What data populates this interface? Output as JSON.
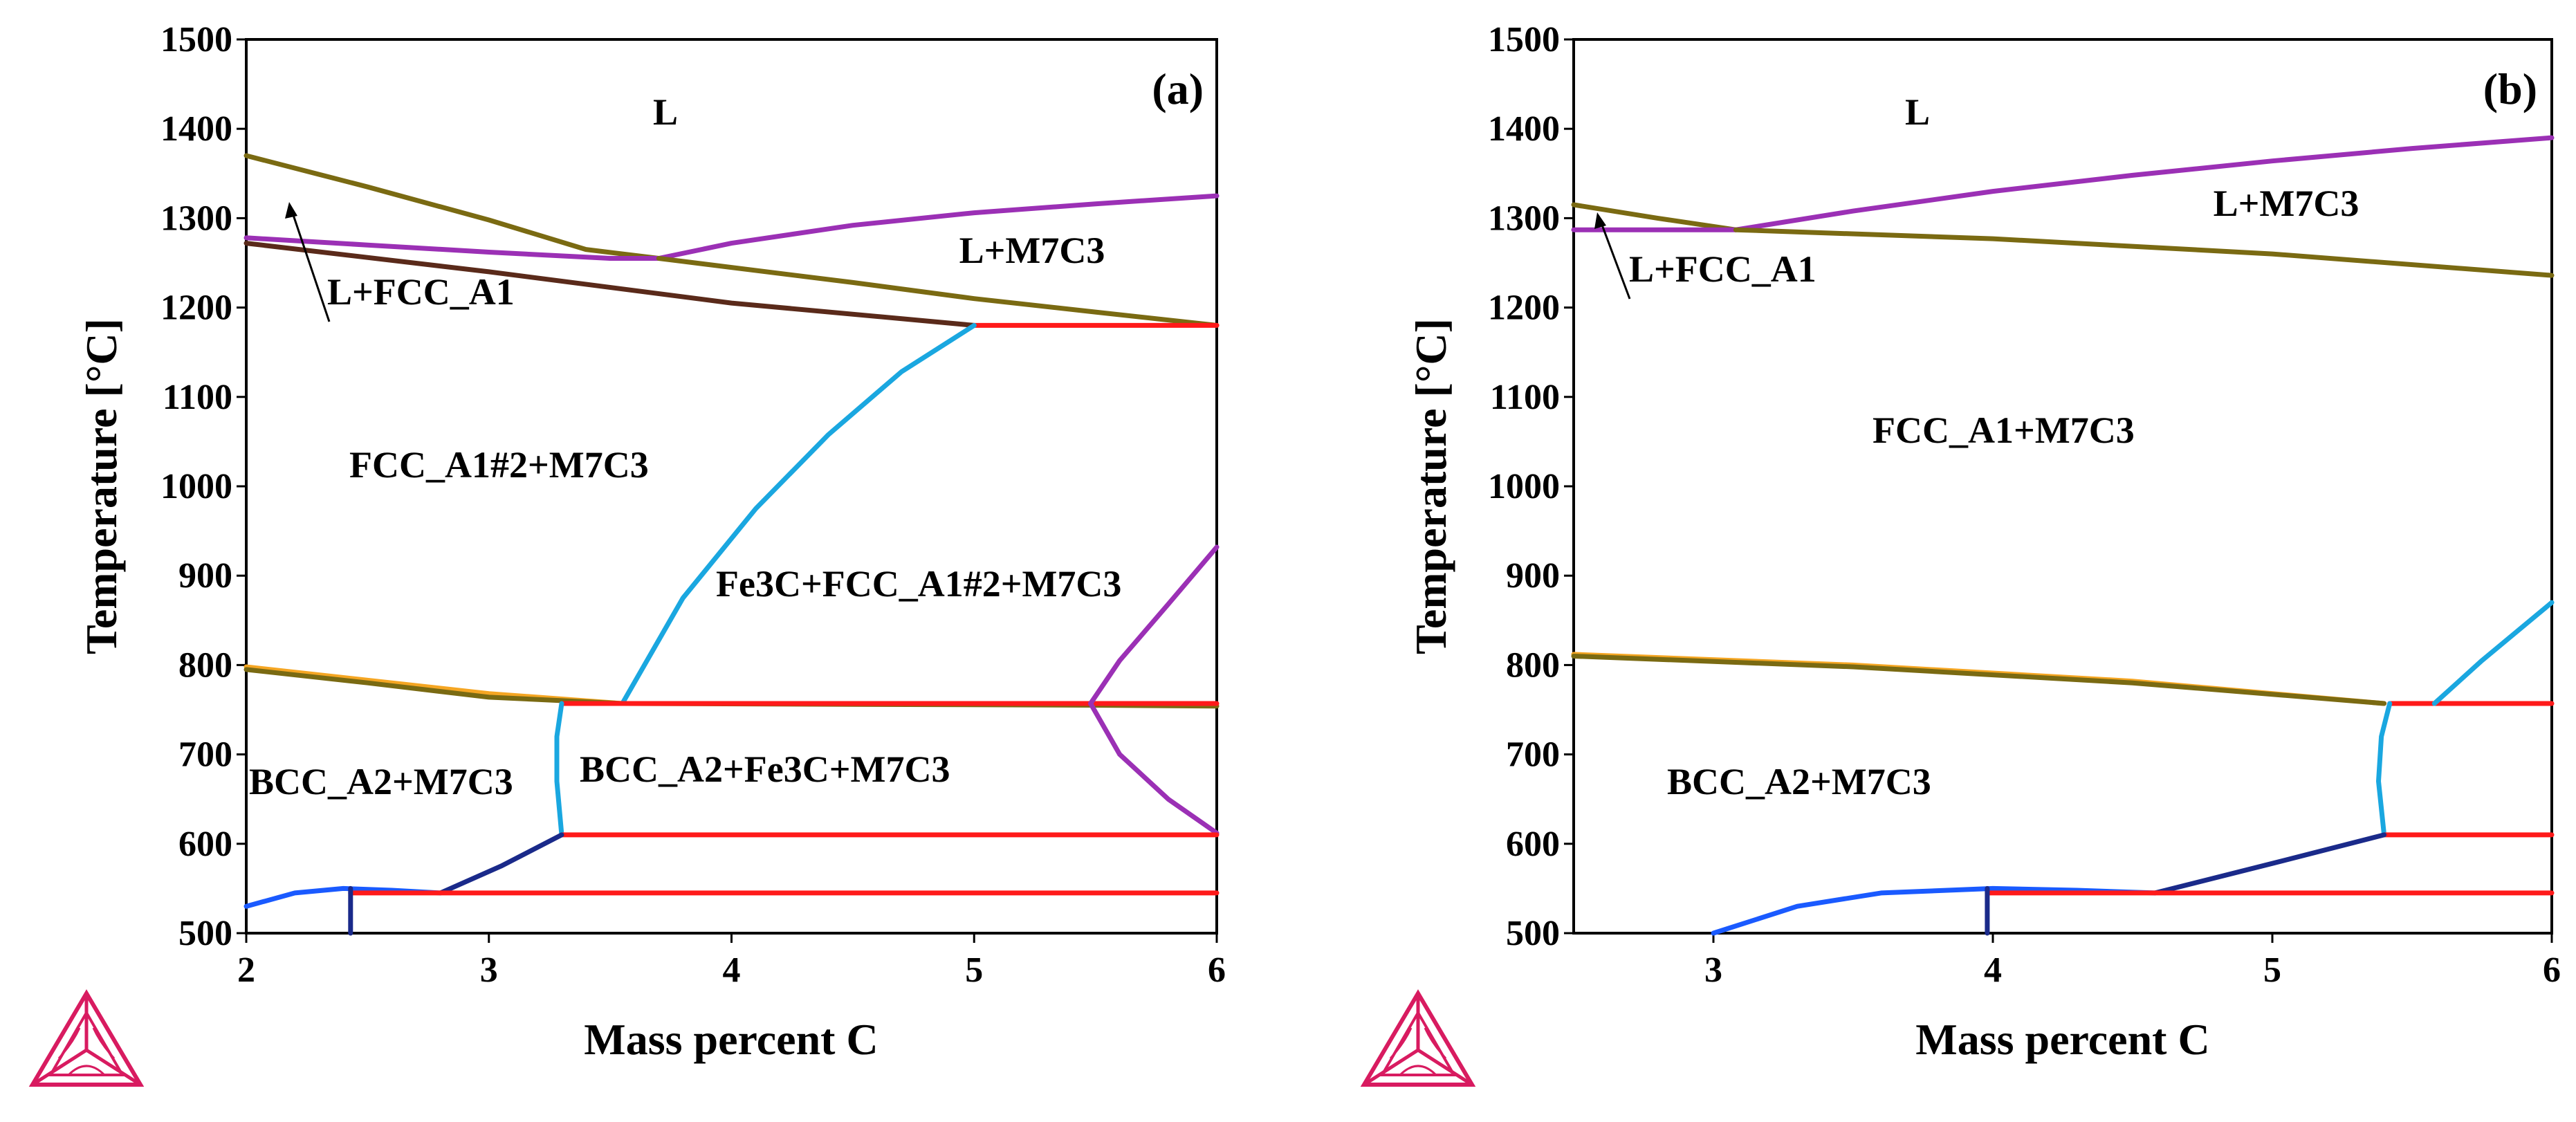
{
  "chart_data": [
    {
      "type": "line",
      "panel_label": "(a)",
      "xlabel": "Mass percent C",
      "ylabel": "Temperature [°C]",
      "xlim": [
        2,
        6
      ],
      "ylim": [
        500,
        1500
      ],
      "x_ticks": [
        2,
        3,
        4,
        5,
        6
      ],
      "y_ticks": [
        500,
        600,
        700,
        800,
        900,
        1000,
        1100,
        1200,
        1300,
        1400,
        1500
      ],
      "series": [
        {
          "name": "liquidus FCC_A1",
          "color": "#7a6a12",
          "points": [
            [
              2,
              1370
            ],
            [
              2.5,
              1335
            ],
            [
              3,
              1298
            ],
            [
              3.4,
              1265
            ],
            [
              3.7,
              1255
            ]
          ]
        },
        {
          "name": "liquidus M7C3",
          "color": "#9b30b5",
          "points": [
            [
              3.7,
              1255
            ],
            [
              4,
              1272
            ],
            [
              4.5,
              1292
            ],
            [
              5,
              1306
            ],
            [
              5.5,
              1316
            ],
            [
              6,
              1325
            ]
          ]
        },
        {
          "name": "solidus FCC_A1",
          "color": "#9b30b5",
          "points": [
            [
              2,
              1278
            ],
            [
              2.5,
              1270
            ],
            [
              3,
              1262
            ],
            [
              3.5,
              1255
            ],
            [
              3.7,
              1255
            ]
          ]
        },
        {
          "name": "L+M7C3 lower boundary",
          "color": "#7a6a12",
          "points": [
            [
              3.7,
              1255
            ],
            [
              4.5,
              1228
            ],
            [
              5,
              1210
            ],
            [
              5.5,
              1195
            ],
            [
              6,
              1180
            ]
          ]
        },
        {
          "name": "FCC solidus boundary",
          "color": "#5a2a1a",
          "points": [
            [
              2,
              1272
            ],
            [
              3,
              1240
            ],
            [
              4,
              1205
            ],
            [
              5,
              1180
            ]
          ]
        },
        {
          "name": "eutectic line",
          "color": "#ff1a1a",
          "points": [
            [
              5,
              1180
            ],
            [
              6,
              1180
            ]
          ]
        },
        {
          "name": "Fe3C solvus",
          "color": "#1aa7e0",
          "points": [
            [
              3.55,
              757
            ],
            [
              3.8,
              875
            ],
            [
              4.1,
              975
            ],
            [
              4.4,
              1058
            ],
            [
              4.7,
              1128
            ],
            [
              5,
              1180
            ]
          ]
        },
        {
          "name": "eutectoid boundary (orange)",
          "color": "#f5a623",
          "points": [
            [
              2,
              798
            ],
            [
              2.5,
              783
            ],
            [
              3,
              768
            ],
            [
              3.55,
              757
            ]
          ]
        },
        {
          "name": "eutectoid boundary (olive)",
          "color": "#7a6a12",
          "points": [
            [
              2,
              795
            ],
            [
              2.5,
              780
            ],
            [
              3,
              764
            ],
            [
              3.55,
              757
            ],
            [
              4.5,
              756
            ],
            [
              5.5,
              755
            ],
            [
              6,
              754
            ]
          ]
        },
        {
          "name": "eutectoid horizontal",
          "color": "#ff1a1a",
          "points": [
            [
              3.3,
              757
            ],
            [
              6,
              757
            ]
          ]
        },
        {
          "name": "BCC boundary",
          "color": "#1aa7e0",
          "points": [
            [
              3.3,
              757
            ],
            [
              3.28,
              720
            ],
            [
              3.28,
              670
            ],
            [
              3.3,
              610
            ]
          ]
        },
        {
          "name": "M7C3 upper solvus",
          "color": "#9b30b5",
          "points": [
            [
              5.48,
              757
            ],
            [
              5.6,
              805
            ],
            [
              5.8,
              868
            ],
            [
              6,
              932
            ]
          ]
        },
        {
          "name": "M7C3 lower solvus",
          "color": "#9b30b5",
          "points": [
            [
              5.48,
              757
            ],
            [
              5.6,
              700
            ],
            [
              5.8,
              650
            ],
            [
              6,
              612
            ]
          ]
        },
        {
          "name": "horizontal 610",
          "color": "#ff1a1a",
          "points": [
            [
              3.3,
              610
            ],
            [
              6,
              610
            ]
          ]
        },
        {
          "name": "dark blue diagonal",
          "color": "#1a2a8a",
          "points": [
            [
              2.8,
              545
            ],
            [
              3.05,
              575
            ],
            [
              3.3,
              610
            ]
          ]
        },
        {
          "name": "lower blue curve",
          "color": "#1a5aff",
          "points": [
            [
              2,
              530
            ],
            [
              2.2,
              545
            ],
            [
              2.4,
              550
            ],
            [
              2.6,
              548
            ],
            [
              2.8,
              545
            ]
          ]
        },
        {
          "name": "horizontal 545",
          "color": "#ff1a1a",
          "points": [
            [
              2.43,
              545
            ],
            [
              6,
              545
            ]
          ]
        },
        {
          "name": "short vertical",
          "color": "#1a2a8a",
          "points": [
            [
              2.43,
              500
            ],
            [
              2.43,
              550
            ]
          ]
        }
      ],
      "region_labels": [
        "L",
        "L+M7C3",
        "L+FCC_A1",
        "FCC_A1#2+M7C3",
        "Fe3C+FCC_A1#2+M7C3",
        "BCC_A2+M7C3",
        "BCC_A2+Fe3C+M7C3"
      ]
    },
    {
      "type": "line",
      "panel_label": "(b)",
      "xlabel": "Mass percent C",
      "ylabel": "Temperature [°C]",
      "xlim": [
        2.5,
        6
      ],
      "ylim": [
        500,
        1500
      ],
      "x_ticks": [
        3,
        4,
        5,
        6
      ],
      "y_ticks": [
        500,
        600,
        700,
        800,
        900,
        1000,
        1100,
        1200,
        1300,
        1400,
        1500
      ],
      "series": [
        {
          "name": "liquidus FCC_A1",
          "color": "#7a6a12",
          "points": [
            [
              2.5,
              1315
            ],
            [
              2.8,
              1300
            ],
            [
              3.08,
              1287
            ]
          ]
        },
        {
          "name": "liquidus M7C3",
          "color": "#9b30b5",
          "points": [
            [
              3.08,
              1287
            ],
            [
              3.5,
              1308
            ],
            [
              4,
              1330
            ],
            [
              4.5,
              1348
            ],
            [
              5,
              1364
            ],
            [
              5.5,
              1378
            ],
            [
              6,
              1390
            ]
          ]
        },
        {
          "name": "solidus FCC_A1",
          "color": "#9b30b5",
          "points": [
            [
              2.5,
              1287
            ],
            [
              3.08,
              1287
            ]
          ]
        },
        {
          "name": "L+M7C3 lower boundary",
          "color": "#7a6a12",
          "points": [
            [
              3.08,
              1287
            ],
            [
              4,
              1277
            ],
            [
              5,
              1260
            ],
            [
              6,
              1236
            ]
          ]
        },
        {
          "name": "eutectoid boundary (orange)",
          "color": "#f5a623",
          "points": [
            [
              2.5,
              812
            ],
            [
              3.5,
              800
            ],
            [
              4.5,
              782
            ],
            [
              5.4,
              757
            ]
          ]
        },
        {
          "name": "eutectoid boundary (olive)",
          "color": "#7a6a12",
          "points": [
            [
              2.5,
              810
            ],
            [
              3.5,
              798
            ],
            [
              4.5,
              780
            ],
            [
              5.4,
              757
            ]
          ]
        },
        {
          "name": "eutectoid horizontal",
          "color": "#ff1a1a",
          "points": [
            [
              5.42,
              757
            ],
            [
              6,
              757
            ]
          ]
        },
        {
          "name": "upper solvus",
          "color": "#1aa7e0",
          "points": [
            [
              5.58,
              757
            ],
            [
              5.75,
              805
            ],
            [
              6,
              870
            ]
          ]
        },
        {
          "name": "BCC boundary",
          "color": "#1aa7e0",
          "points": [
            [
              5.42,
              757
            ],
            [
              5.39,
              720
            ],
            [
              5.38,
              670
            ],
            [
              5.4,
              610
            ]
          ]
        },
        {
          "name": "horizontal 610",
          "color": "#ff1a1a",
          "points": [
            [
              5.4,
              610
            ],
            [
              6,
              610
            ]
          ]
        },
        {
          "name": "dark blue diagonal",
          "color": "#1a2a8a",
          "points": [
            [
              4.58,
              545
            ],
            [
              5,
              578
            ],
            [
              5.4,
              610
            ]
          ]
        },
        {
          "name": "lower blue curve",
          "color": "#1a5aff",
          "points": [
            [
              3,
              500
            ],
            [
              3.3,
              530
            ],
            [
              3.6,
              545
            ],
            [
              4,
              550
            ],
            [
              4.3,
              548
            ],
            [
              4.58,
              545
            ]
          ]
        },
        {
          "name": "horizontal 545",
          "color": "#ff1a1a",
          "points": [
            [
              3.98,
              545
            ],
            [
              6,
              545
            ]
          ]
        },
        {
          "name": "short vertical",
          "color": "#1a2a8a",
          "points": [
            [
              3.98,
              500
            ],
            [
              3.98,
              550
            ]
          ]
        }
      ],
      "region_labels": [
        "L",
        "L+M7C3",
        "L+FCC_A1",
        "FCC_A1+M7C3",
        "BCC_A2+M7C3"
      ]
    }
  ]
}
